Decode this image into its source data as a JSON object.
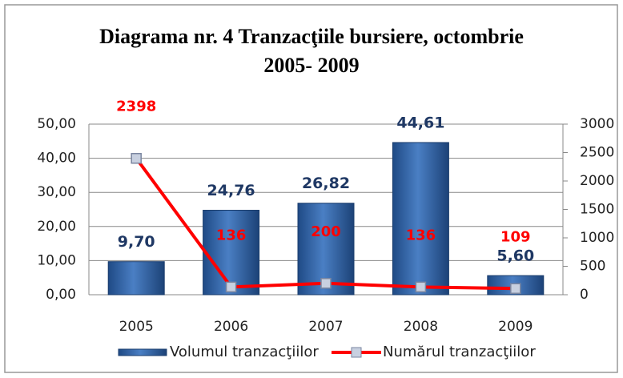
{
  "chart_data": {
    "type": "bar_line",
    "title": "Diagrama nr. 4 Tranzacţiile bursiere, octombrie\n2005- 2009",
    "categories": [
      "2005",
      "2006",
      "2007",
      "2008",
      "2009"
    ],
    "series": [
      {
        "name": "Volumul tranzacţiilor",
        "type": "bar",
        "color": "#2f5f9e",
        "values": [
          9.7,
          24.76,
          26.82,
          44.61,
          5.6
        ],
        "value_labels": [
          "9,70",
          "24,76",
          "26,82",
          "44,61",
          "5,60"
        ]
      },
      {
        "name": "Numărul tranzacţiilor",
        "type": "line",
        "axis": "y2",
        "color": "#ff0000",
        "values": [
          2398,
          136,
          200,
          136,
          109
        ]
      }
    ],
    "ylim": [
      0,
      50
    ],
    "yticks": [
      {
        "value": 0,
        "label": "0,00"
      },
      {
        "value": 10,
        "label": "10,00"
      },
      {
        "value": 20,
        "label": "20,00"
      },
      {
        "value": 30,
        "label": "30,00"
      },
      {
        "value": 40,
        "label": "40,00"
      },
      {
        "value": 50,
        "label": "50,00"
      }
    ],
    "y2lim": [
      0,
      3000
    ],
    "y2ticks": [
      0,
      500,
      1000,
      1500,
      2000,
      2500,
      3000
    ],
    "grid": true,
    "legend": "bottom"
  }
}
